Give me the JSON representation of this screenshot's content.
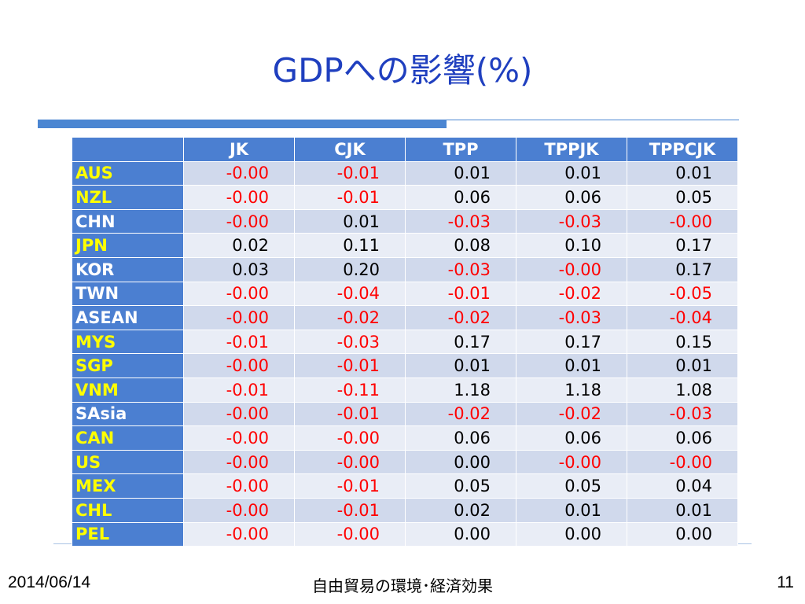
{
  "title": "GDPへの影響(%)",
  "table": {
    "corner": "",
    "columns": [
      "JK",
      "CJK",
      "TPP",
      "TPPJK",
      "TPPCJK"
    ],
    "rows": [
      {
        "label": "AUS",
        "label_color": "yellow",
        "values": [
          "-0.00",
          "-0.01",
          "0.01",
          "0.01",
          "0.01"
        ]
      },
      {
        "label": "NZL",
        "label_color": "yellow",
        "values": [
          "-0.00",
          "-0.01",
          "0.06",
          "0.06",
          "0.05"
        ]
      },
      {
        "label": "CHN",
        "label_color": "white",
        "values": [
          "-0.00",
          "0.01",
          "-0.03",
          "-0.03",
          "-0.00"
        ]
      },
      {
        "label": "JPN",
        "label_color": "yellow",
        "values": [
          "0.02",
          "0.11",
          "0.08",
          "0.10",
          "0.17"
        ]
      },
      {
        "label": "KOR",
        "label_color": "white",
        "values": [
          "0.03",
          "0.20",
          "-0.03",
          "-0.00",
          "0.17"
        ]
      },
      {
        "label": "TWN",
        "label_color": "white",
        "values": [
          "-0.00",
          "-0.04",
          "-0.01",
          "-0.02",
          "-0.05"
        ]
      },
      {
        "label": "ASEAN",
        "label_color": "white",
        "values": [
          "-0.00",
          "-0.02",
          "-0.02",
          "-0.03",
          "-0.04"
        ]
      },
      {
        "label": "MYS",
        "label_color": "yellow",
        "values": [
          "-0.01",
          "-0.03",
          "0.17",
          "0.17",
          "0.15"
        ]
      },
      {
        "label": "SGP",
        "label_color": "yellow",
        "values": [
          "-0.00",
          "-0.01",
          "0.01",
          "0.01",
          "0.01"
        ]
      },
      {
        "label": "VNM",
        "label_color": "yellow",
        "values": [
          "-0.01",
          "-0.11",
          "1.18",
          "1.18",
          "1.08"
        ]
      },
      {
        "label": "SAsia",
        "label_color": "white",
        "values": [
          "-0.00",
          "-0.01",
          "-0.02",
          "-0.02",
          "-0.03"
        ]
      },
      {
        "label": "CAN",
        "label_color": "yellow",
        "values": [
          "-0.00",
          "-0.00",
          "0.06",
          "0.06",
          "0.06"
        ]
      },
      {
        "label": "US",
        "label_color": "yellow",
        "values": [
          "-0.00",
          "-0.00",
          "0.00",
          "-0.00",
          "-0.00"
        ]
      },
      {
        "label": "MEX",
        "label_color": "yellow",
        "values": [
          "-0.00",
          "-0.01",
          "0.05",
          "0.05",
          "0.04"
        ]
      },
      {
        "label": "CHL",
        "label_color": "yellow",
        "values": [
          "-0.00",
          "-0.01",
          "0.02",
          "0.01",
          "0.01"
        ]
      },
      {
        "label": "PEL",
        "label_color": "yellow",
        "values": [
          "-0.00",
          "-0.00",
          "0.00",
          "0.00",
          "0.00"
        ]
      }
    ]
  },
  "footer": {
    "date": "2014/06/14",
    "center": "自由貿易の環境･経済効果",
    "page": "11"
  },
  "colors": {
    "title": "#1f3fbf",
    "header_bg": "#4b7fd1",
    "negative": "#ff0000",
    "highlight_label": "#ffff00",
    "row_band_odd": "#d0d9ec",
    "row_band_even": "#e9edf6"
  }
}
